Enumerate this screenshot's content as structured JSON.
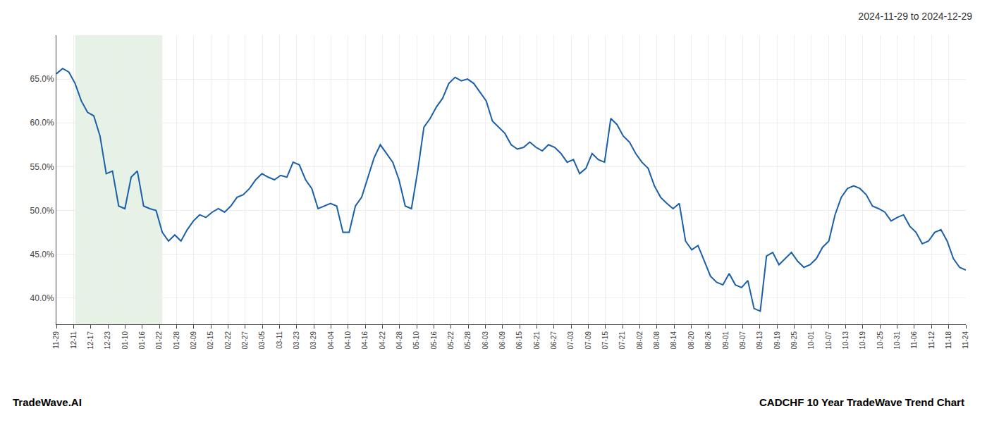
{
  "chart_data": {
    "type": "line",
    "title": "2024-11-29 to 2024-12-29",
    "annotations": [
      "TradeWave.AI",
      "CADCHF 10 Year TradeWave Trend Chart"
    ],
    "color": "#1a5fa8",
    "grid": true,
    "highlight": {
      "x": [
        3,
        17
      ],
      "color": "#d6ead6"
    },
    "x": [
      0,
      1,
      2,
      3,
      4,
      5,
      6,
      7,
      8,
      9,
      10,
      11,
      12,
      13,
      14,
      15,
      16,
      17,
      18,
      19,
      20,
      21,
      22,
      23,
      24,
      25,
      26,
      27,
      28,
      29,
      30,
      31,
      32,
      33,
      34,
      35,
      36,
      37,
      38,
      39,
      40,
      41,
      42,
      43,
      44,
      45,
      46,
      47,
      48,
      49,
      50,
      51,
      52,
      53,
      54,
      55,
      56,
      57,
      58,
      59,
      60,
      61,
      62,
      63,
      64,
      65,
      66,
      67,
      68,
      69,
      70,
      71,
      72,
      73,
      74,
      75,
      76,
      77,
      78,
      79,
      80,
      81,
      82,
      83,
      84,
      85,
      86,
      87,
      88,
      89,
      90,
      91,
      92,
      93,
      94,
      95,
      96,
      97,
      98,
      99,
      100,
      101,
      102,
      103,
      104,
      105,
      106,
      107,
      108,
      109,
      110,
      111,
      112,
      113,
      114,
      115,
      116,
      117,
      118,
      119,
      120,
      121,
      122,
      123,
      124,
      125,
      126,
      127,
      128,
      129,
      130,
      131,
      132,
      133,
      134,
      135,
      136,
      137,
      138,
      139,
      140,
      141,
      142,
      143,
      144,
      145,
      146
    ],
    "values": [
      65.6,
      66.2,
      65.8,
      64.5,
      62.5,
      61.2,
      60.8,
      58.5,
      54.2,
      54.5,
      50.5,
      50.2,
      53.8,
      54.5,
      50.5,
      50.2,
      50.0,
      47.5,
      46.5,
      47.2,
      46.5,
      47.8,
      48.8,
      49.5,
      49.2,
      49.8,
      50.2,
      49.8,
      50.5,
      51.5,
      51.8,
      52.5,
      53.5,
      54.2,
      53.8,
      53.5,
      54.0,
      53.8,
      55.5,
      55.2,
      53.5,
      52.5,
      50.2,
      50.5,
      50.8,
      50.5,
      47.5,
      47.5,
      50.5,
      51.5,
      53.8,
      56.0,
      57.5,
      56.5,
      55.5,
      53.5,
      50.5,
      50.2,
      54.5,
      59.5,
      60.5,
      61.8,
      62.8,
      64.5,
      65.2,
      64.8,
      65.0,
      64.5,
      63.5,
      62.5,
      60.2,
      59.5,
      58.8,
      57.5,
      57.0,
      57.2,
      57.8,
      57.2,
      56.8,
      57.5,
      57.2,
      56.5,
      55.5,
      55.8,
      54.2,
      54.8,
      56.5,
      55.8,
      55.5,
      60.5,
      59.8,
      58.5,
      57.8,
      56.5,
      55.5,
      54.8,
      52.8,
      51.5,
      50.8,
      50.2,
      50.8,
      46.5,
      45.5,
      46.0,
      44.2,
      42.5,
      41.8,
      41.5,
      42.8,
      41.5,
      41.2,
      42.0,
      38.8,
      38.5,
      44.8,
      45.2,
      43.8,
      44.5,
      45.2,
      44.2,
      43.5,
      43.8,
      44.5,
      45.8,
      46.5,
      49.5,
      51.5,
      52.5,
      52.8,
      52.5,
      51.8,
      50.5,
      50.2,
      49.8,
      48.8,
      49.2,
      49.5,
      48.2,
      47.5,
      46.2,
      46.5,
      47.5,
      47.8,
      46.5,
      44.5,
      43.5,
      43.2
    ],
    "xlim": [
      0,
      146
    ],
    "xticks": [
      {
        "value": 0,
        "label": "11-29"
      },
      {
        "value": 2.754717,
        "label": "12-11"
      },
      {
        "value": 5.509434,
        "label": "12-17"
      },
      {
        "value": 8.264151,
        "label": "12-23"
      },
      {
        "value": 11.018868,
        "label": "01-10"
      },
      {
        "value": 13.773585,
        "label": "01-16"
      },
      {
        "value": 16.528302,
        "label": "01-22"
      },
      {
        "value": 19.283019,
        "label": "01-28"
      },
      {
        "value": 22.037736,
        "label": "02-09"
      },
      {
        "value": 24.792453,
        "label": "02-15"
      },
      {
        "value": 27.54717,
        "label": "02-22"
      },
      {
        "value": 30.301887,
        "label": "02-27"
      },
      {
        "value": 33.056604,
        "label": "03-05"
      },
      {
        "value": 35.811321,
        "label": "03-11"
      },
      {
        "value": 38.566038,
        "label": "03-23"
      },
      {
        "value": 41.320755,
        "label": "03-29"
      },
      {
        "value": 44.075472,
        "label": "04-04"
      },
      {
        "value": 46.830189,
        "label": "04-10"
      },
      {
        "value": 49.584906,
        "label": "04-16"
      },
      {
        "value": 52.339623,
        "label": "04-22"
      },
      {
        "value": 55.09434,
        "label": "04-28"
      },
      {
        "value": 57.849057,
        "label": "05-10"
      },
      {
        "value": 60.603774,
        "label": "05-16"
      },
      {
        "value": 63.358491,
        "label": "05-22"
      },
      {
        "value": 66.113208,
        "label": "05-28"
      },
      {
        "value": 68.867925,
        "label": "06-03"
      },
      {
        "value": 71.622642,
        "label": "06-09"
      },
      {
        "value": 74.377358,
        "label": "06-15"
      },
      {
        "value": 77.132075,
        "label": "06-21"
      },
      {
        "value": 79.886792,
        "label": "06-27"
      },
      {
        "value": 82.641509,
        "label": "07-03"
      },
      {
        "value": 85.396226,
        "label": "07-09"
      },
      {
        "value": 88.150943,
        "label": "07-15"
      },
      {
        "value": 90.90566,
        "label": "07-21"
      },
      {
        "value": 93.660377,
        "label": "08-02"
      },
      {
        "value": 96.415094,
        "label": "08-08"
      },
      {
        "value": 99.169811,
        "label": "08-14"
      },
      {
        "value": 101.924528,
        "label": "08-20"
      },
      {
        "value": 104.679245,
        "label": "08-26"
      },
      {
        "value": 107.433962,
        "label": "09-01"
      },
      {
        "value": 110.188679,
        "label": "09-07"
      },
      {
        "value": 112.943396,
        "label": "09-13"
      },
      {
        "value": 115.698113,
        "label": "09-19"
      },
      {
        "value": 118.45283,
        "label": "09-25"
      },
      {
        "value": 121.207547,
        "label": "10-01"
      },
      {
        "value": 123.962264,
        "label": "10-07"
      },
      {
        "value": 126.716981,
        "label": "10-13"
      },
      {
        "value": 129.471698,
        "label": "10-19"
      },
      {
        "value": 132.226415,
        "label": "10-25"
      },
      {
        "value": 134.981132,
        "label": "10-31"
      },
      {
        "value": 137.735849,
        "label": "11-06"
      },
      {
        "value": 140.490566,
        "label": "11-12"
      },
      {
        "value": 143.245283,
        "label": "11-18"
      },
      {
        "value": 146,
        "label": "11-24"
      }
    ],
    "ylim": [
      37.0,
      70.0
    ],
    "yticks": [
      {
        "value": 40.0,
        "label": "40.0%"
      },
      {
        "value": 45.0,
        "label": "45.0%"
      },
      {
        "value": 50.0,
        "label": "50.0%"
      },
      {
        "value": 55.0,
        "label": "55.0%"
      },
      {
        "value": 60.0,
        "label": "60.0%"
      },
      {
        "value": 65.0,
        "label": "65.0%"
      }
    ]
  }
}
